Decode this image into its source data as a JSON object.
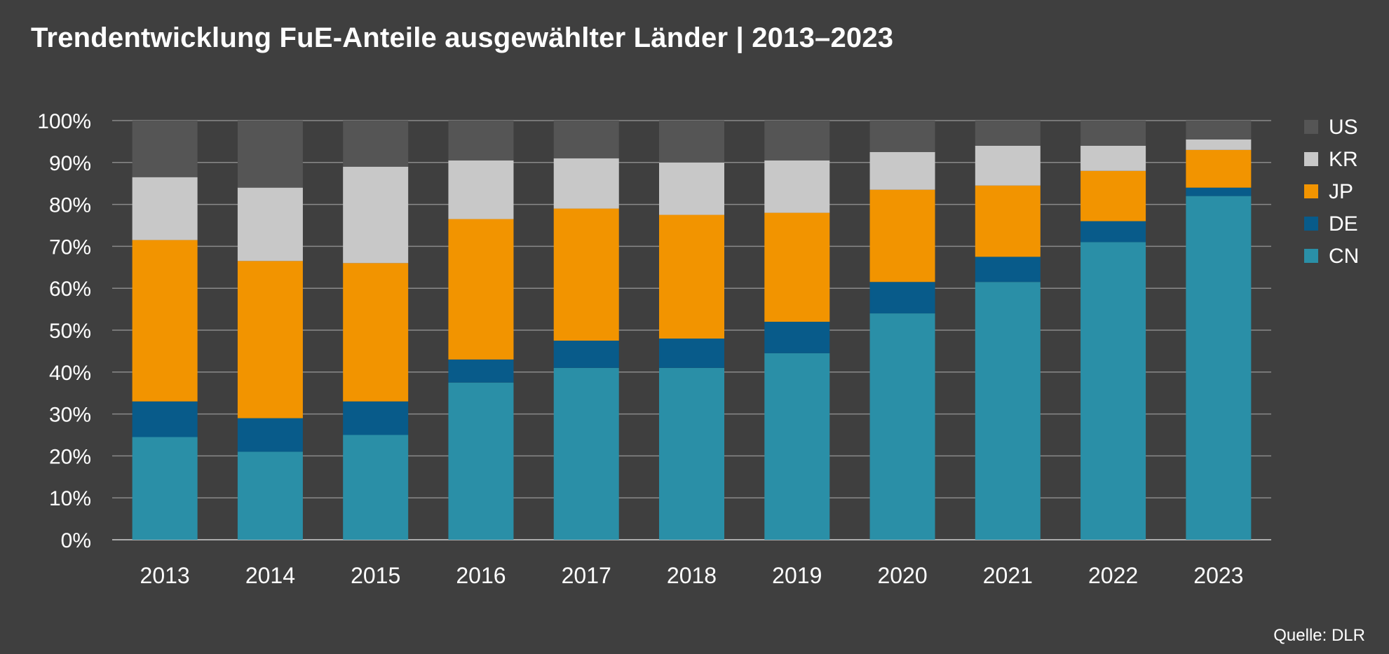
{
  "chart_data": {
    "type": "bar",
    "stacked": true,
    "title": "Trendentwicklung FuE-Anteile ausgewählter Länder | 2013–2023",
    "source": "Quelle: DLR",
    "categories": [
      "2013",
      "2014",
      "2015",
      "2016",
      "2017",
      "2018",
      "2019",
      "2020",
      "2021",
      "2022",
      "2023"
    ],
    "ylim": [
      0,
      100
    ],
    "yticks": [
      "0%",
      "10%",
      "20%",
      "30%",
      "40%",
      "50%",
      "60%",
      "70%",
      "80%",
      "90%",
      "100%"
    ],
    "grid": true,
    "legend_position": "right",
    "series": [
      {
        "name": "CN",
        "color": "#2a8fa7",
        "values": [
          24.5,
          21,
          25,
          37.5,
          41,
          41,
          44.5,
          54,
          61.5,
          71,
          82
        ]
      },
      {
        "name": "DE",
        "color": "#085b8a",
        "values": [
          8.5,
          8,
          8,
          5.5,
          6.5,
          7,
          7.5,
          7.5,
          6,
          5,
          2
        ]
      },
      {
        "name": "JP",
        "color": "#f29400",
        "values": [
          38.5,
          37.5,
          33,
          33.5,
          31.5,
          29.5,
          26,
          22,
          17,
          12,
          9
        ]
      },
      {
        "name": "KR",
        "color": "#c8c8c8",
        "values": [
          15,
          17.5,
          23,
          14,
          12,
          12.5,
          12.5,
          9,
          9.5,
          6,
          2.5
        ]
      },
      {
        "name": "US",
        "color": "#555555",
        "values": [
          13.5,
          16,
          11,
          9.5,
          9,
          10,
          9.5,
          7.5,
          6,
          6,
          4.5
        ]
      }
    ]
  }
}
